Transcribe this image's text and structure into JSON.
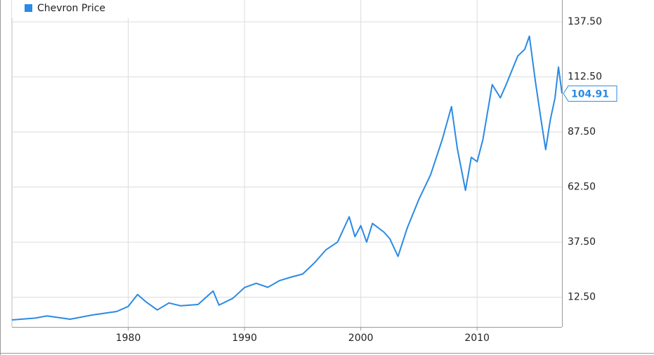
{
  "chart_data": {
    "type": "line",
    "x": [
      1970,
      1972,
      1973,
      1975,
      1977,
      1979,
      1980,
      1980.8,
      1981.5,
      1982.5,
      1983.5,
      1984.5,
      1986,
      1987.3,
      1987.8,
      1989,
      1990,
      1991,
      1992,
      1993,
      1994,
      1995,
      1996,
      1997,
      1998,
      1999,
      1999.5,
      2000,
      2000.5,
      2001,
      2002,
      2002.5,
      2003.2,
      2004,
      2005,
      2006,
      2007,
      2007.8,
      2008.3,
      2009,
      2009.5,
      2010,
      2010.5,
      2011.3,
      2012,
      2012.5,
      2013.5,
      2014.1,
      2014.5,
      2015,
      2015.5,
      2015.9,
      2016.3,
      2016.7,
      2017,
      2017.3
    ],
    "series": [
      {
        "name": "Chevron Price",
        "color": "#2a8ae4",
        "values": [
          2.2,
          3,
          4,
          2.5,
          4.5,
          6,
          8.3,
          13.7,
          10.5,
          6.7,
          9.9,
          8.6,
          9.2,
          15.3,
          8.9,
          12,
          16.9,
          18.8,
          17,
          20,
          21.6,
          23,
          28,
          34,
          37.5,
          49,
          40,
          45,
          37.5,
          46,
          42,
          39,
          31,
          44,
          57,
          68,
          84,
          99,
          80,
          61,
          76,
          74,
          84,
          109,
          103,
          109,
          122,
          125,
          131,
          111,
          93,
          79.5,
          93,
          103,
          117,
          105
        ]
      }
    ],
    "xlim": [
      1970,
      2017.3
    ],
    "xticks": [
      1980,
      1990,
      2000,
      2010
    ],
    "ylim": [
      -1,
      147.4
    ],
    "yticks": [
      {
        "value": 12.5,
        "label": "12.50"
      },
      {
        "value": 37.5,
        "label": "37.50"
      },
      {
        "value": 62.5,
        "label": "62.50"
      },
      {
        "value": 87.5,
        "label": "87.50"
      },
      {
        "value": 112.5,
        "label": "112.50"
      },
      {
        "value": 137.5,
        "label": "137.50"
      }
    ],
    "grid": true,
    "legend": "top-left",
    "annotations": [
      {
        "label": "104.91",
        "value": 104.91
      }
    ]
  }
}
